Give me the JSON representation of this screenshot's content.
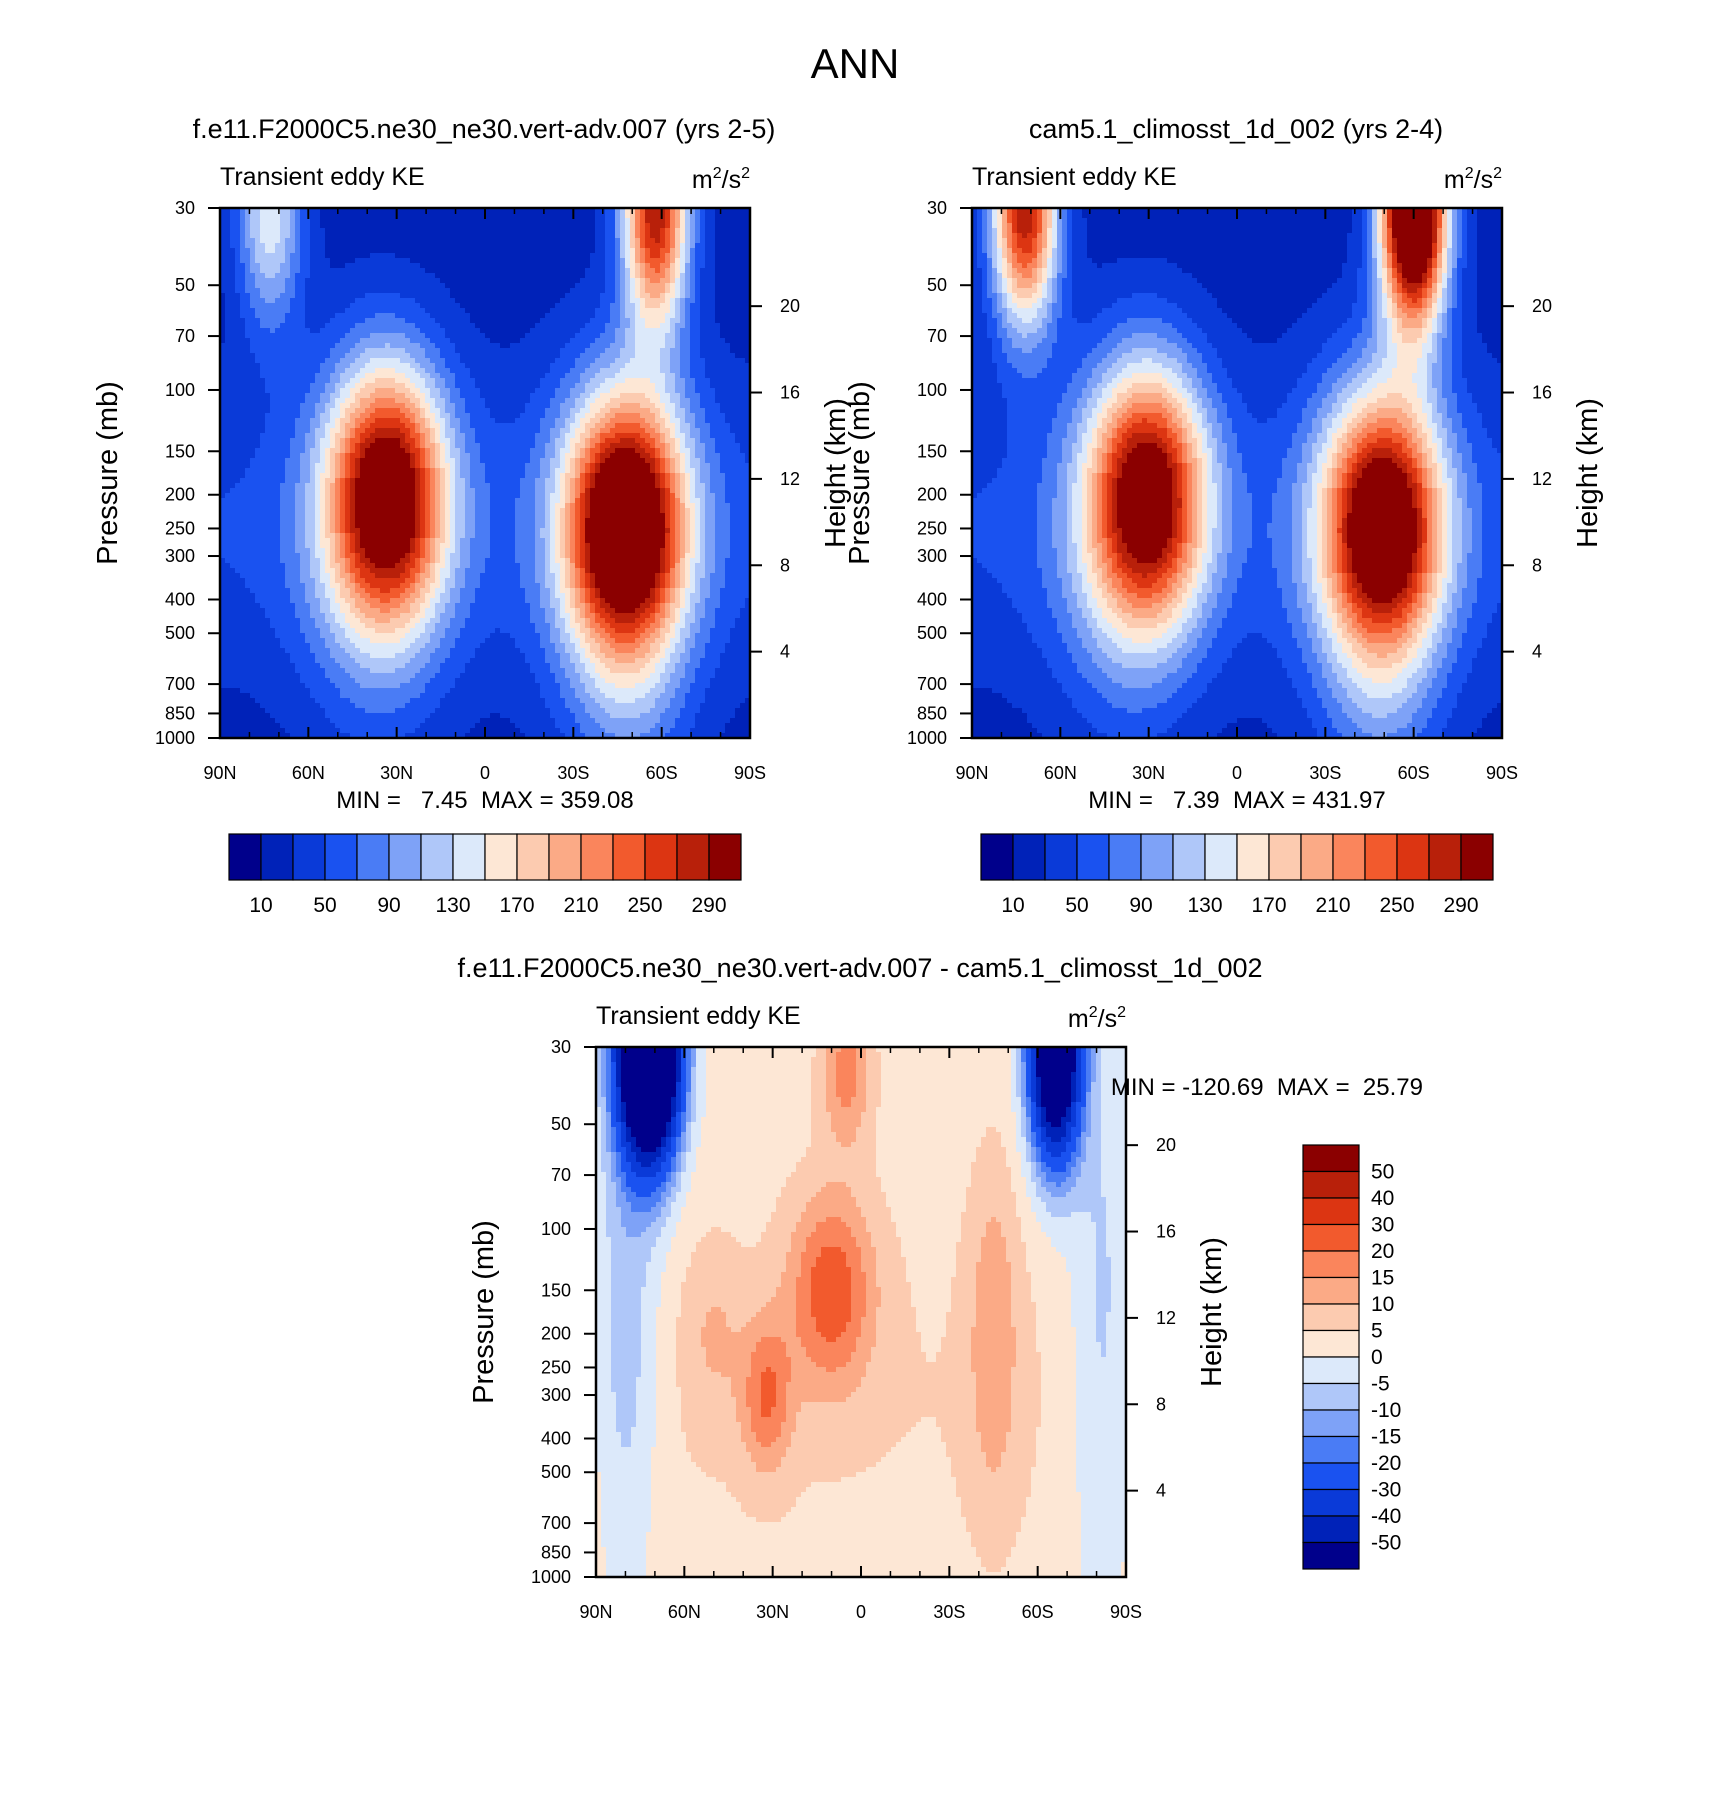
{
  "figure_title": "ANN",
  "chart_data": [
    {
      "type": "heatmap",
      "id": "top-left",
      "title": "f.e11.F2000C5.ne30_ne30.vert-adv.007 (yrs 2-5)",
      "left_string": "Transient eddy KE",
      "units_base": "m",
      "units_exp1": "2",
      "units_mid": "/s",
      "units_exp2": "2",
      "xlabel": "",
      "ylabel": "Pressure (mb)",
      "ylabel_right": "Height (km)",
      "x_ticks": [
        "90N",
        "60N",
        "30N",
        "0",
        "30S",
        "60S",
        "90S"
      ],
      "x_tick_values": [
        90,
        60,
        30,
        0,
        -30,
        -60,
        -90
      ],
      "y_ticks": [
        "30",
        "50",
        "70",
        "100",
        "150",
        "200",
        "250",
        "300",
        "400",
        "500",
        "700",
        "850",
        "1000"
      ],
      "y_tick_values": [
        30,
        50,
        70,
        100,
        150,
        200,
        250,
        300,
        400,
        500,
        700,
        850,
        1000
      ],
      "y_right_ticks": [
        "4",
        "8",
        "12",
        "16",
        "20"
      ],
      "y_right_values": [
        4,
        8,
        12,
        16,
        20
      ],
      "ylim": [
        1000,
        30
      ],
      "minmax_text": "MIN =   7.45  MAX = 359.08",
      "min": 7.45,
      "max": 359.08,
      "jets": [
        {
          "lat": 33,
          "p": 200,
          "peak": 290
        },
        {
          "lat": -48,
          "p": 250,
          "peak": 330
        },
        {
          "lat": -58,
          "p": 30,
          "peak": 300
        },
        {
          "lat": 73,
          "p": 30,
          "peak": 160
        }
      ]
    },
    {
      "type": "heatmap",
      "id": "top-right",
      "title": "cam5.1_climosst_1d_002 (yrs 2-4)",
      "left_string": "Transient eddy KE",
      "units_base": "m",
      "units_exp1": "2",
      "units_mid": "/s",
      "units_exp2": "2",
      "xlabel": "",
      "ylabel": "Pressure (mb)",
      "ylabel_right": "Height (km)",
      "x_ticks": [
        "90N",
        "60N",
        "30N",
        "0",
        "30S",
        "60S",
        "90S"
      ],
      "x_tick_values": [
        90,
        60,
        30,
        0,
        -30,
        -60,
        -90
      ],
      "y_ticks": [
        "30",
        "50",
        "70",
        "100",
        "150",
        "200",
        "250",
        "300",
        "400",
        "500",
        "700",
        "850",
        "1000"
      ],
      "y_tick_values": [
        30,
        50,
        70,
        100,
        150,
        200,
        250,
        300,
        400,
        500,
        700,
        850,
        1000
      ],
      "y_right_ticks": [
        "4",
        "8",
        "12",
        "16",
        "20"
      ],
      "y_right_values": [
        4,
        8,
        12,
        16,
        20
      ],
      "ylim": [
        1000,
        30
      ],
      "minmax_text": "MIN =   7.39  MAX = 431.97",
      "min": 7.39,
      "max": 431.97,
      "jets": [
        {
          "lat": 30,
          "p": 200,
          "peak": 280
        },
        {
          "lat": -50,
          "p": 250,
          "peak": 300
        },
        {
          "lat": -60,
          "p": 30,
          "peak": 430
        },
        {
          "lat": 72,
          "p": 30,
          "peak": 300
        }
      ]
    },
    {
      "type": "heatmap",
      "id": "bottom",
      "title": "f.e11.F2000C5.ne30_ne30.vert-adv.007 - cam5.1_climosst_1d_002",
      "left_string": "Transient eddy KE",
      "units_base": "m",
      "units_exp1": "2",
      "units_mid": "/s",
      "units_exp2": "2",
      "xlabel": "",
      "ylabel": "Pressure (mb)",
      "ylabel_right": "Height (km)",
      "x_ticks": [
        "90N",
        "60N",
        "30N",
        "0",
        "30S",
        "60S",
        "90S"
      ],
      "x_tick_values": [
        90,
        60,
        30,
        0,
        -30,
        -60,
        -90
      ],
      "y_ticks": [
        "30",
        "50",
        "70",
        "100",
        "150",
        "200",
        "250",
        "300",
        "400",
        "500",
        "700",
        "850",
        "1000"
      ],
      "y_tick_values": [
        30,
        50,
        70,
        100,
        150,
        200,
        250,
        300,
        400,
        500,
        700,
        850,
        1000
      ],
      "y_right_ticks": [
        "4",
        "8",
        "12",
        "16",
        "20"
      ],
      "y_right_values": [
        4,
        8,
        12,
        16,
        20
      ],
      "ylim": [
        1000,
        30
      ],
      "minmax_text": "MIN = -120.69  MAX =  25.79",
      "min": -120.69,
      "max": 25.79,
      "features": [
        {
          "lat": 72,
          "p": 30,
          "value": -120
        },
        {
          "lat": -65,
          "p": 30,
          "value": -80
        },
        {
          "lat": 12,
          "p": 150,
          "value": 22
        },
        {
          "lat": 30,
          "p": 300,
          "value": 18
        },
        {
          "lat": 5,
          "p": 40,
          "value": 18
        },
        {
          "lat": -45,
          "p": 200,
          "value": 12
        }
      ]
    }
  ],
  "colorbar_abs": {
    "orientation": "horizontal",
    "levels": [
      10,
      30,
      50,
      70,
      90,
      110,
      130,
      150,
      170,
      190,
      210,
      230,
      250,
      270,
      290
    ],
    "labels": [
      "10",
      "50",
      "90",
      "130",
      "170",
      "210",
      "250",
      "290"
    ],
    "colors": [
      "#00008b",
      "#0022b8",
      "#0a3ad8",
      "#1a52f0",
      "#4a7cf5",
      "#7ea2f7",
      "#afc7f9",
      "#dce9fa",
      "#fde7d5",
      "#fccbb0",
      "#fbaa86",
      "#fa855c",
      "#f25a2d",
      "#dc3512",
      "#b8200a",
      "#8b0000"
    ]
  },
  "colorbar_diff": {
    "orientation": "vertical",
    "levels": [
      -50,
      -40,
      -30,
      -20,
      -15,
      -10,
      -5,
      0,
      5,
      10,
      15,
      20,
      30,
      40,
      50
    ],
    "labels": [
      "50",
      "40",
      "30",
      "20",
      "15",
      "10",
      "5",
      "0",
      "-5",
      "-10",
      "-15",
      "-20",
      "-30",
      "-40",
      "-50"
    ],
    "colors": [
      "#00008b",
      "#0022b8",
      "#0a3ad8",
      "#1a52f0",
      "#4a7cf5",
      "#7ea2f7",
      "#afc7f9",
      "#dce9fa",
      "#fde7d5",
      "#fccbb0",
      "#fbaa86",
      "#fa855c",
      "#f25a2d",
      "#dc3512",
      "#b8200a",
      "#8b0000"
    ]
  }
}
